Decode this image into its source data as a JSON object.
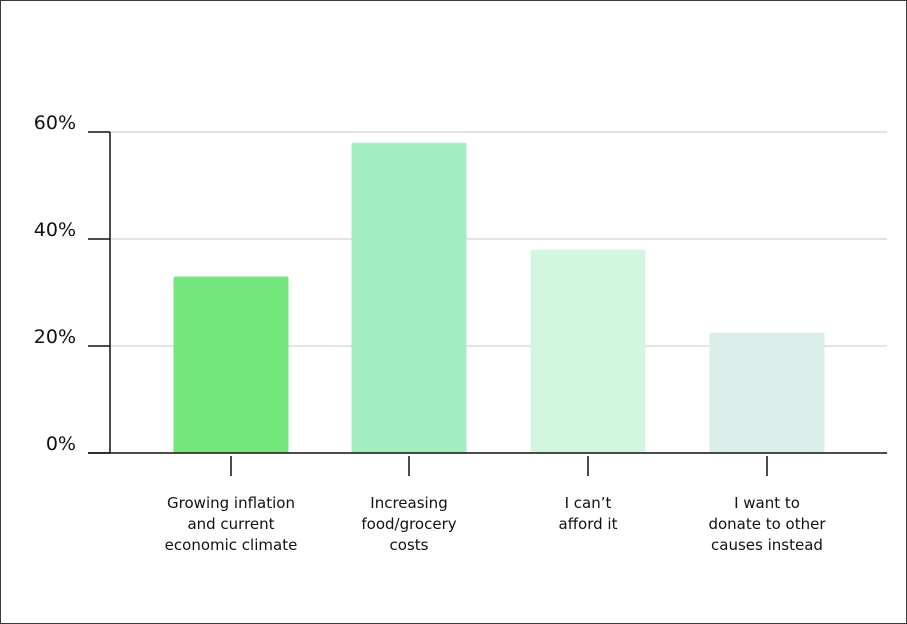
{
  "chart_data": {
    "type": "bar",
    "title": "",
    "xlabel": "",
    "ylabel": "",
    "categories": [
      [
        "Growing inflation",
        "and current",
        "economic climate"
      ],
      [
        "Increasing",
        "food/grocery",
        "costs"
      ],
      [
        "I can’t",
        "afford it"
      ],
      [
        "I want to",
        "donate to other",
        "causes instead"
      ]
    ],
    "values": [
      33,
      58,
      38,
      22.5
    ],
    "colors": [
      "#74e77c",
      "#a4efc1",
      "#d3f6e0",
      "#dbede8"
    ],
    "ylim": [
      0,
      60
    ],
    "yticks": [
      0,
      20,
      40,
      60
    ],
    "ytick_labels": [
      "0%",
      "20%",
      "40%",
      "60%"
    ],
    "grid": true,
    "legend": "none"
  }
}
